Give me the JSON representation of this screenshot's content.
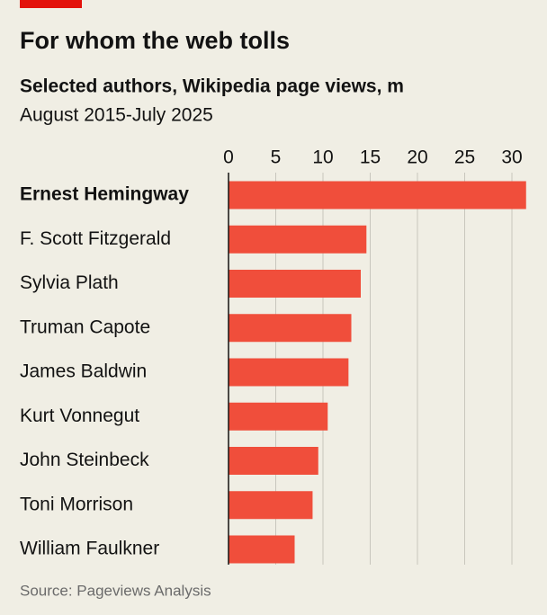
{
  "chart_data": {
    "type": "hbar",
    "title": "For whom the web tolls",
    "subtitle": "Selected authors, Wikipedia page views, m",
    "period": "August 2015-July 2025",
    "source": "Source: Pageviews Analysis",
    "categories": [
      "Ernest Hemingway",
      "F. Scott Fitzgerald",
      "Sylvia Plath",
      "Truman Capote",
      "James Baldwin",
      "Kurt Vonnegut",
      "John Steinbeck",
      "Toni Morrison",
      "William Faulkner"
    ],
    "values": [
      31.5,
      14.6,
      14.0,
      13.0,
      12.7,
      10.5,
      9.5,
      8.9,
      7.0
    ],
    "color": "#f04e3b",
    "xlim": [
      0,
      32
    ],
    "xticks": [
      0,
      5,
      10,
      15,
      20,
      25,
      30
    ],
    "grid": true
  }
}
